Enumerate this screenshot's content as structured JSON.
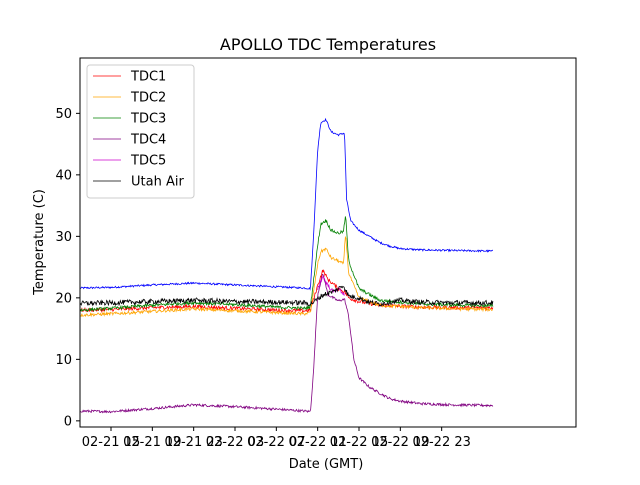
{
  "chart_data": {
    "type": "line",
    "title": "APOLLO TDC Temperatures",
    "xlabel": "Date (GMT)",
    "ylabel": "Temperature (C)",
    "xlim_hours": [
      -3,
      45
    ],
    "ylim": [
      -1,
      59
    ],
    "grid": false,
    "legend_position": "top-left",
    "x_ticks": [
      {
        "hour": 0,
        "label": "02-21 15"
      },
      {
        "hour": 4,
        "label": "02-21 19"
      },
      {
        "hour": 8,
        "label": "02-21 23"
      },
      {
        "hour": 12,
        "label": "02-22 03"
      },
      {
        "hour": 16,
        "label": "02-22 07"
      },
      {
        "hour": 20,
        "label": "02-22 11"
      },
      {
        "hour": 24,
        "label": "02-22 15"
      },
      {
        "hour": 28,
        "label": "02-22 19"
      },
      {
        "hour": 32,
        "label": "02-22 23"
      }
    ],
    "y_ticks": [
      0,
      10,
      20,
      30,
      40,
      50
    ],
    "series": [
      {
        "name": "TDC1",
        "color": "#ff0000",
        "noise": 0.3,
        "points": [
          [
            -3,
            18.0
          ],
          [
            0,
            18.1
          ],
          [
            4,
            18.4
          ],
          [
            8,
            18.6
          ],
          [
            12,
            18.3
          ],
          [
            16,
            18.0
          ],
          [
            18.7,
            17.9
          ],
          [
            19.3,
            18.0
          ],
          [
            20.0,
            22.0
          ],
          [
            20.5,
            24.5
          ],
          [
            21.0,
            23.0
          ],
          [
            22.0,
            21.5
          ],
          [
            22.6,
            21.0
          ],
          [
            23.0,
            20.0
          ],
          [
            24,
            19.4
          ],
          [
            26,
            18.8
          ],
          [
            30,
            18.5
          ],
          [
            34,
            18.4
          ],
          [
            37,
            18.4
          ]
        ]
      },
      {
        "name": "TDC2",
        "color": "#ffa500",
        "noise": 0.25,
        "points": [
          [
            -3,
            17.2
          ],
          [
            0,
            17.4
          ],
          [
            4,
            17.8
          ],
          [
            8,
            18.2
          ],
          [
            12,
            17.9
          ],
          [
            16,
            17.6
          ],
          [
            18.7,
            17.4
          ],
          [
            19.3,
            17.6
          ],
          [
            20.0,
            25.5
          ],
          [
            20.3,
            27.5
          ],
          [
            20.8,
            28.0
          ],
          [
            21.3,
            26.5
          ],
          [
            22.0,
            26.0
          ],
          [
            22.5,
            25.5
          ],
          [
            22.7,
            30.5
          ],
          [
            23.0,
            24.0
          ],
          [
            24,
            20.0
          ],
          [
            26,
            18.8
          ],
          [
            30,
            18.4
          ],
          [
            34,
            18.2
          ],
          [
            37,
            18.1
          ]
        ]
      },
      {
        "name": "TDC3",
        "color": "#008000",
        "noise": 0.25,
        "points": [
          [
            -3,
            18.0
          ],
          [
            0,
            18.3
          ],
          [
            4,
            18.8
          ],
          [
            8,
            19.2
          ],
          [
            12,
            18.9
          ],
          [
            16,
            18.5
          ],
          [
            18.7,
            18.3
          ],
          [
            19.3,
            18.5
          ],
          [
            20.0,
            28.5
          ],
          [
            20.3,
            32.0
          ],
          [
            20.8,
            32.6
          ],
          [
            21.3,
            31.0
          ],
          [
            22.0,
            30.5
          ],
          [
            22.5,
            30.8
          ],
          [
            22.7,
            33.5
          ],
          [
            23.0,
            26.0
          ],
          [
            24,
            21.5
          ],
          [
            26,
            19.6
          ],
          [
            30,
            19.0
          ],
          [
            34,
            18.8
          ],
          [
            37,
            18.7
          ]
        ]
      },
      {
        "name": "TDC4",
        "color": "#800080",
        "noise": 0.2,
        "points": [
          [
            -3,
            1.6
          ],
          [
            0,
            1.5
          ],
          [
            4,
            2.0
          ],
          [
            8,
            2.6
          ],
          [
            12,
            2.3
          ],
          [
            16,
            1.9
          ],
          [
            18.7,
            1.6
          ],
          [
            19.3,
            1.5
          ],
          [
            19.6,
            8.0
          ],
          [
            20.0,
            20.5
          ],
          [
            20.5,
            24.0
          ],
          [
            21.0,
            20.5
          ],
          [
            22.0,
            19.5
          ],
          [
            22.6,
            19.8
          ],
          [
            23.0,
            17.0
          ],
          [
            23.5,
            10.0
          ],
          [
            24,
            7.0
          ],
          [
            25,
            5.5
          ],
          [
            26,
            4.5
          ],
          [
            27,
            3.6
          ],
          [
            28,
            3.2
          ],
          [
            30,
            2.8
          ],
          [
            33,
            2.6
          ],
          [
            37,
            2.5
          ]
        ]
      },
      {
        "name": "TDC5",
        "color": "#cc00cc",
        "noise": 0.3,
        "points": [
          [
            20.0,
            21.5
          ],
          [
            20.5,
            23.5
          ],
          [
            21.0,
            22.0
          ],
          [
            21.5,
            21.0
          ],
          [
            22.0,
            21.5
          ],
          [
            22.6,
            20.5
          ]
        ]
      },
      {
        "name": "Utah Air",
        "color": "#000000",
        "noise": 0.4,
        "points": [
          [
            -3,
            19.1
          ],
          [
            0,
            19.2
          ],
          [
            4,
            19.4
          ],
          [
            8,
            19.6
          ],
          [
            12,
            19.4
          ],
          [
            16,
            19.3
          ],
          [
            18.7,
            19.2
          ],
          [
            19.3,
            19.0
          ],
          [
            20.0,
            19.8
          ],
          [
            20.5,
            20.5
          ],
          [
            21.5,
            21.0
          ],
          [
            22.0,
            21.5
          ],
          [
            22.5,
            22.0
          ],
          [
            23.0,
            20.3
          ],
          [
            24,
            20.0
          ],
          [
            25,
            19.3
          ],
          [
            26,
            19.0
          ],
          [
            28,
            19.6
          ],
          [
            30,
            19.3
          ],
          [
            33,
            19.2
          ],
          [
            37,
            19.2
          ]
        ]
      },
      {
        "name": "Utah Air ambient (blue)",
        "legend": false,
        "color": "#0000ff",
        "noise": 0.15,
        "points": [
          [
            -3,
            21.6
          ],
          [
            0,
            21.7
          ],
          [
            4,
            22.1
          ],
          [
            8,
            22.4
          ],
          [
            12,
            22.1
          ],
          [
            16,
            21.8
          ],
          [
            18.7,
            21.6
          ],
          [
            19.3,
            21.5
          ],
          [
            19.6,
            30.0
          ],
          [
            20.0,
            44.0
          ],
          [
            20.3,
            48.5
          ],
          [
            20.8,
            49.0
          ],
          [
            21.3,
            47.0
          ],
          [
            22.0,
            46.5
          ],
          [
            22.6,
            46.8
          ],
          [
            22.8,
            36.0
          ],
          [
            23.2,
            32.5
          ],
          [
            24,
            31.0
          ],
          [
            25,
            30.0
          ],
          [
            26,
            29.0
          ],
          [
            27,
            28.4
          ],
          [
            28,
            28.0
          ],
          [
            30,
            27.8
          ],
          [
            33,
            27.7
          ],
          [
            37,
            27.6
          ]
        ]
      }
    ]
  }
}
